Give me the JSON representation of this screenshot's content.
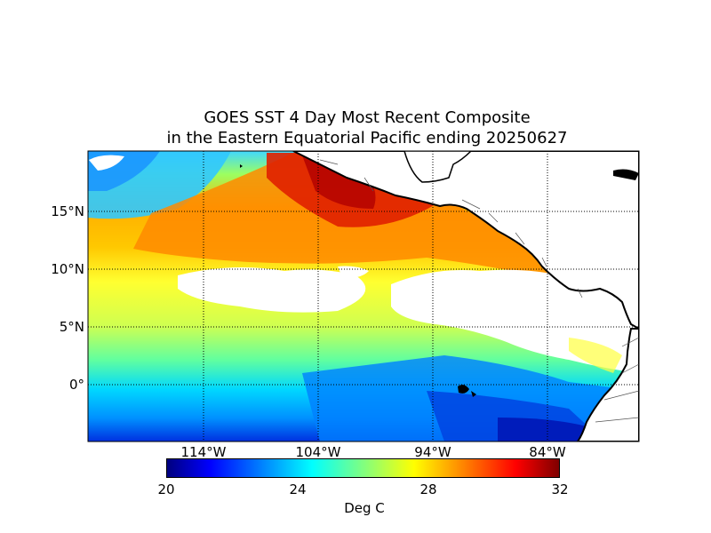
{
  "title_line1": "GOES SST 4 Day Most Recent Composite",
  "title_line2": "in the Eastern Equatorial Pacific ending 20250627",
  "lat_labels": [
    "15°N",
    "10°N",
    "5°N",
    "0°"
  ],
  "lon_labels": [
    "114°W",
    "104°W",
    "94°W",
    "84°W"
  ],
  "colorbar": {
    "ticks": [
      "20",
      "24",
      "28",
      "32"
    ],
    "label": "Deg C",
    "range": [
      20,
      32
    ],
    "colormap": "jet"
  },
  "colors": {
    "land": "#ffffff",
    "coast": "#000000",
    "missing_data": "#ffffff",
    "cool_water": "#00c8ff",
    "warm_water": "#ff6000",
    "hot_water": "#d00000"
  }
}
